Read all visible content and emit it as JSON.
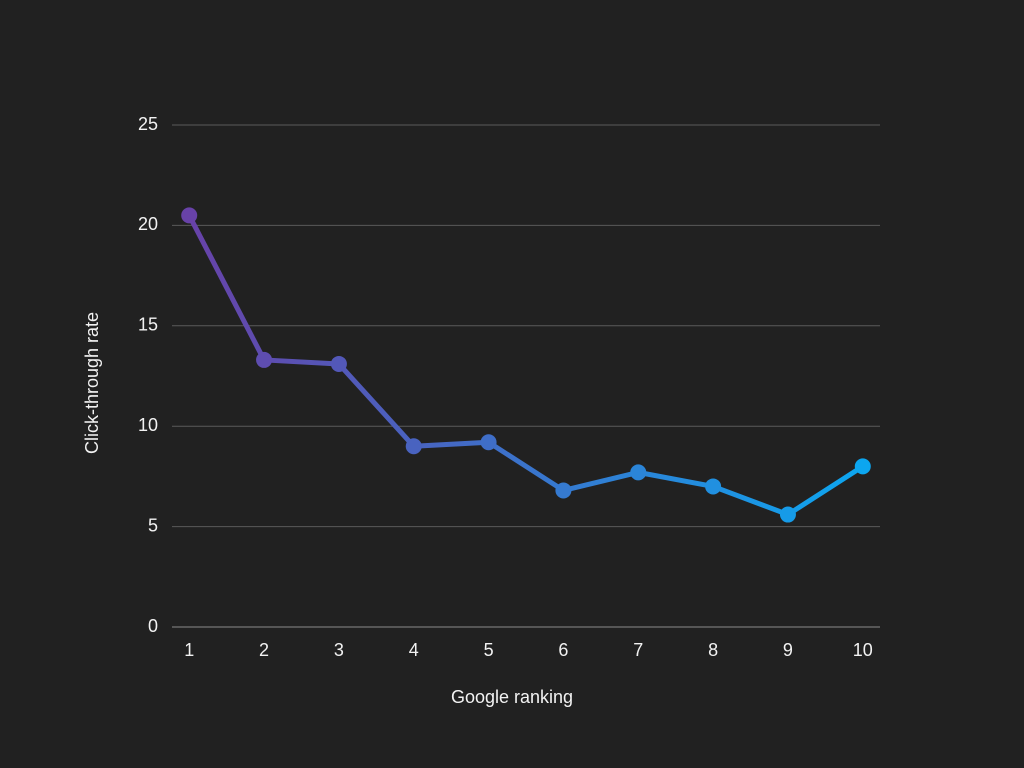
{
  "chart_data": {
    "type": "line",
    "x_label": "Google ranking",
    "y_label": "Click-through rate",
    "x": [
      1,
      2,
      3,
      4,
      5,
      6,
      7,
      8,
      9,
      10
    ],
    "series": [
      {
        "name": "Click-through rate",
        "color": [
          "#6a3fa6",
          "#0aa9f2"
        ],
        "values": [
          20.5,
          13.3,
          13.1,
          9.0,
          9.2,
          6.8,
          7.7,
          7.0,
          5.6,
          8.0
        ]
      }
    ],
    "xlim": [
      0.77,
      10.23
    ],
    "xticks": [
      1,
      2,
      3,
      4,
      5,
      6,
      7,
      8,
      9,
      10
    ],
    "ylim": [
      0,
      25
    ],
    "yticks": [
      0,
      5,
      10,
      15,
      20,
      25
    ],
    "grid": true
  }
}
